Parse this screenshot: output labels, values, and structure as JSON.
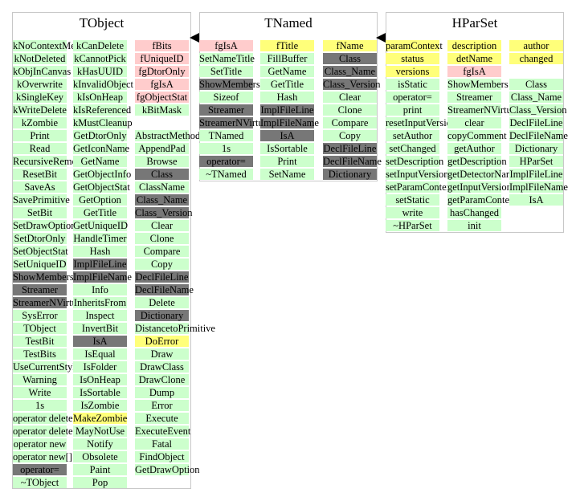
{
  "colors": {
    "g": "#ccffcc",
    "p": "#ffcccc",
    "y": "#ffff7a",
    "d": "#777777",
    "border": "#c8c8c8"
  },
  "classes": [
    {
      "key": "tobject",
      "title": "TObject",
      "columns": [
        [
          [
            "kNoContextMenu",
            "g"
          ],
          [
            "kNotDeleted",
            "g"
          ],
          [
            "kObjInCanvas",
            "g"
          ],
          [
            "kOverwrite",
            "g"
          ],
          [
            "kSingleKey",
            "g"
          ],
          [
            "kWriteDelete",
            "g"
          ],
          [
            "kZombie",
            "g"
          ],
          [
            "Print",
            "g"
          ],
          [
            "Read",
            "g"
          ],
          [
            "RecursiveRemove",
            "g"
          ],
          [
            "ResetBit",
            "g"
          ],
          [
            "SaveAs",
            "g"
          ],
          [
            "SavePrimitive",
            "g"
          ],
          [
            "SetBit",
            "g"
          ],
          [
            "SetDrawOption",
            "g"
          ],
          [
            "SetDtorOnly",
            "g"
          ],
          [
            "SetObjectStat",
            "g"
          ],
          [
            "SetUniqueID",
            "g"
          ],
          [
            "ShowMembers",
            "d"
          ],
          [
            "Streamer",
            "d"
          ],
          [
            "StreamerNVirtual",
            "d"
          ],
          [
            "SysError",
            "g"
          ],
          [
            "TObject",
            "g"
          ],
          [
            "TestBit",
            "g"
          ],
          [
            "TestBits",
            "g"
          ],
          [
            "UseCurrentStyle",
            "g"
          ],
          [
            "Warning",
            "g"
          ],
          [
            "Write",
            "g"
          ],
          [
            "1s",
            "g"
          ],
          [
            "operator delete",
            "g"
          ],
          [
            "operator delete[]",
            "g"
          ],
          [
            "operator new",
            "g"
          ],
          [
            "operator new[]",
            "g"
          ],
          [
            "operator=",
            "d"
          ],
          [
            "~TObject",
            "g"
          ]
        ],
        [
          [
            "kCanDelete",
            "g"
          ],
          [
            "kCannotPick",
            "g"
          ],
          [
            "kHasUUID",
            "g"
          ],
          [
            "kInvalidObject",
            "g"
          ],
          [
            "kIsOnHeap",
            "g"
          ],
          [
            "kIsReferenced",
            "g"
          ],
          [
            "kMustCleanup",
            "g"
          ],
          [
            "GetDtorOnly",
            "g"
          ],
          [
            "GetIconName",
            "g"
          ],
          [
            "GetName",
            "g"
          ],
          [
            "GetObjectInfo",
            "g"
          ],
          [
            "GetObjectStat",
            "g"
          ],
          [
            "GetOption",
            "g"
          ],
          [
            "GetTitle",
            "g"
          ],
          [
            "GetUniqueID",
            "g"
          ],
          [
            "HandleTimer",
            "g"
          ],
          [
            "Hash",
            "g"
          ],
          [
            "ImplFileLine",
            "d"
          ],
          [
            "ImplFileName",
            "d"
          ],
          [
            "Info",
            "g"
          ],
          [
            "InheritsFrom",
            "g"
          ],
          [
            "Inspect",
            "g"
          ],
          [
            "InvertBit",
            "g"
          ],
          [
            "IsA",
            "d"
          ],
          [
            "IsEqual",
            "g"
          ],
          [
            "IsFolder",
            "g"
          ],
          [
            "IsOnHeap",
            "g"
          ],
          [
            "IsSortable",
            "g"
          ],
          [
            "IsZombie",
            "g"
          ],
          [
            "MakeZombie",
            "y"
          ],
          [
            "MayNotUse",
            "g"
          ],
          [
            "Notify",
            "g"
          ],
          [
            "Obsolete",
            "g"
          ],
          [
            "Paint",
            "g"
          ],
          [
            "Pop",
            "g"
          ]
        ],
        [
          [
            "fBits",
            "p"
          ],
          [
            "fUniqueID",
            "p"
          ],
          [
            "fgDtorOnly",
            "p"
          ],
          [
            "fgIsA",
            "p"
          ],
          [
            "fgObjectStat",
            "p"
          ],
          [
            "kBitMask",
            "g"
          ],
          [
            "",
            "w"
          ],
          [
            "AbstractMethod",
            "g"
          ],
          [
            "AppendPad",
            "g"
          ],
          [
            "Browse",
            "g"
          ],
          [
            "Class",
            "d"
          ],
          [
            "ClassName",
            "g"
          ],
          [
            "Class_Name",
            "d"
          ],
          [
            "Class_Version",
            "d"
          ],
          [
            "Clear",
            "g"
          ],
          [
            "Clone",
            "g"
          ],
          [
            "Compare",
            "g"
          ],
          [
            "Copy",
            "g"
          ],
          [
            "DeclFileLine",
            "d"
          ],
          [
            "DeclFileName",
            "d"
          ],
          [
            "Delete",
            "g"
          ],
          [
            "Dictionary",
            "d"
          ],
          [
            "DistancetoPrimitive",
            "g"
          ],
          [
            "DoError",
            "y"
          ],
          [
            "Draw",
            "g"
          ],
          [
            "DrawClass",
            "g"
          ],
          [
            "DrawClone",
            "g"
          ],
          [
            "Dump",
            "g"
          ],
          [
            "Error",
            "g"
          ],
          [
            "Execute",
            "g"
          ],
          [
            "ExecuteEvent",
            "g"
          ],
          [
            "Fatal",
            "g"
          ],
          [
            "FindObject",
            "g"
          ],
          [
            "GetDrawOption",
            "g"
          ]
        ]
      ]
    },
    {
      "key": "tnamed",
      "title": "TNamed",
      "columns": [
        [
          [
            "fgIsA",
            "p"
          ],
          [
            "SetNameTitle",
            "g"
          ],
          [
            "SetTitle",
            "g"
          ],
          [
            "ShowMembers",
            "d"
          ],
          [
            "Sizeof",
            "g"
          ],
          [
            "Streamer",
            "d"
          ],
          [
            "StreamerNVirtual",
            "d"
          ],
          [
            "TNamed",
            "g"
          ],
          [
            "1s",
            "g"
          ],
          [
            "operator=",
            "d"
          ],
          [
            "~TNamed",
            "g"
          ]
        ],
        [
          [
            "fTitle",
            "y"
          ],
          [
            "FillBuffer",
            "g"
          ],
          [
            "GetName",
            "g"
          ],
          [
            "GetTitle",
            "g"
          ],
          [
            "Hash",
            "g"
          ],
          [
            "ImplFileLine",
            "d"
          ],
          [
            "ImplFileName",
            "d"
          ],
          [
            "IsA",
            "d"
          ],
          [
            "IsSortable",
            "g"
          ],
          [
            "Print",
            "g"
          ],
          [
            "SetName",
            "g"
          ]
        ],
        [
          [
            "fName",
            "y"
          ],
          [
            "Class",
            "d"
          ],
          [
            "Class_Name",
            "d"
          ],
          [
            "Class_Version",
            "d"
          ],
          [
            "Clear",
            "g"
          ],
          [
            "Clone",
            "g"
          ],
          [
            "Compare",
            "g"
          ],
          [
            "Copy",
            "g"
          ],
          [
            "DeclFileLine",
            "d"
          ],
          [
            "DeclFileName",
            "d"
          ],
          [
            "Dictionary",
            "d"
          ]
        ]
      ]
    },
    {
      "key": "hparset",
      "title": "HParSet",
      "columns": [
        [
          [
            "paramContext",
            "y"
          ],
          [
            "status",
            "y"
          ],
          [
            "versions",
            "y"
          ],
          [
            "isStatic",
            "g"
          ],
          [
            "operator=",
            "g"
          ],
          [
            "print",
            "g"
          ],
          [
            "resetInputVersions",
            "g"
          ],
          [
            "setAuthor",
            "g"
          ],
          [
            "setChanged",
            "g"
          ],
          [
            "setDescription",
            "g"
          ],
          [
            "setInputVersion",
            "g"
          ],
          [
            "setParamContext",
            "g"
          ],
          [
            "setStatic",
            "g"
          ],
          [
            "write",
            "g"
          ],
          [
            "~HParSet",
            "g"
          ]
        ],
        [
          [
            "description",
            "y"
          ],
          [
            "detName",
            "y"
          ],
          [
            "fgIsA",
            "p"
          ],
          [
            "ShowMembers",
            "g"
          ],
          [
            "Streamer",
            "g"
          ],
          [
            "StreamerNVirtual",
            "g"
          ],
          [
            "clear",
            "g"
          ],
          [
            "copyComment",
            "g"
          ],
          [
            "getAuthor",
            "g"
          ],
          [
            "getDescription",
            "g"
          ],
          [
            "getDetectorName",
            "g"
          ],
          [
            "getInputVersion",
            "g"
          ],
          [
            "getParamContext",
            "g"
          ],
          [
            "hasChanged",
            "g"
          ],
          [
            "init",
            "g"
          ]
        ],
        [
          [
            "author",
            "y"
          ],
          [
            "changed",
            "y"
          ],
          [
            "",
            "w"
          ],
          [
            "Class",
            "g"
          ],
          [
            "Class_Name",
            "g"
          ],
          [
            "Class_Version",
            "g"
          ],
          [
            "DeclFileLine",
            "g"
          ],
          [
            "DeclFileName",
            "g"
          ],
          [
            "Dictionary",
            "g"
          ],
          [
            "HParSet",
            "g"
          ],
          [
            "ImplFileLine",
            "g"
          ],
          [
            "ImplFileName",
            "g"
          ],
          [
            "IsA",
            "g"
          ]
        ]
      ]
    }
  ]
}
